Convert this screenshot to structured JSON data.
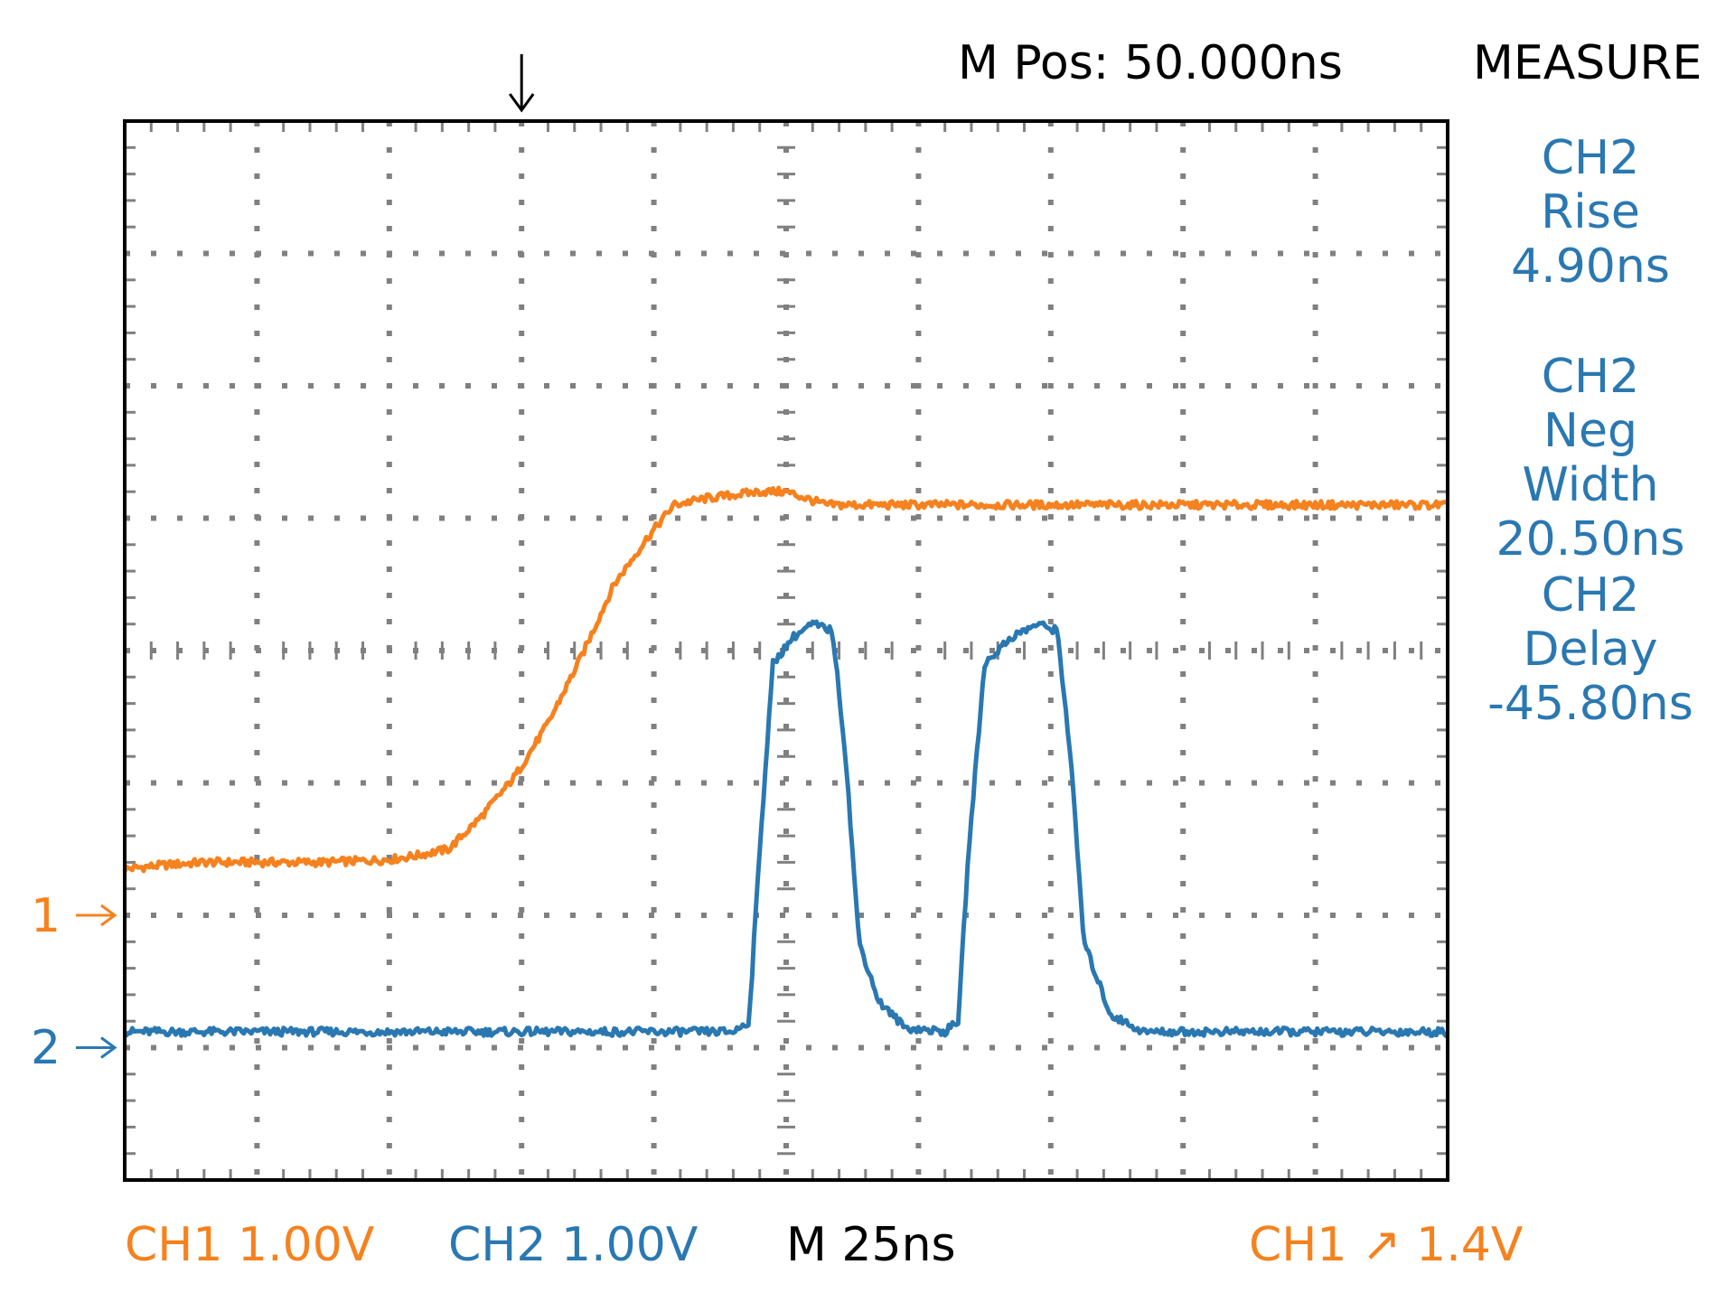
{
  "header": {
    "position": "M Pos: 50.000ns",
    "menu": "MEASURE"
  },
  "footer": {
    "ch1_scale": "CH1 1.00V",
    "ch2_scale": "CH2 1.00V",
    "timebase": "M 25ns",
    "trigger": "CH1 ↗ 1.4V"
  },
  "markers": {
    "ch1": "1",
    "ch2": "2"
  },
  "measurements": [
    {
      "channel": "CH2",
      "name": "Rise",
      "value": "4.90ns"
    },
    {
      "channel": "CH2",
      "name": "Neg Width",
      "value": "20.50ns"
    },
    {
      "channel": "CH2",
      "name": "Delay",
      "value": "-45.80ns"
    }
  ],
  "colors": {
    "ch1": "#f5821f",
    "ch2": "#2a78b1",
    "text": "#000000",
    "grid": "#808080"
  },
  "chart_data": {
    "type": "line",
    "x_divisions": 10,
    "y_divisions": 8,
    "x_unit": "div",
    "y_unit": "div",
    "grid": "dotted",
    "trigger_position_div": 3.0,
    "series": [
      {
        "name": "CH1",
        "color": "#f5821f",
        "ground_div": 2.0,
        "points": [
          [
            0,
            2.35
          ],
          [
            0.3,
            2.38
          ],
          [
            0.6,
            2.4
          ],
          [
            1.0,
            2.4
          ],
          [
            1.5,
            2.4
          ],
          [
            2.0,
            2.42
          ],
          [
            2.2,
            2.45
          ],
          [
            2.45,
            2.5
          ],
          [
            2.7,
            2.75
          ],
          [
            2.95,
            3.05
          ],
          [
            3.2,
            3.45
          ],
          [
            3.45,
            3.95
          ],
          [
            3.7,
            4.5
          ],
          [
            3.95,
            4.85
          ],
          [
            4.15,
            5.1
          ],
          [
            4.4,
            5.15
          ],
          [
            4.8,
            5.2
          ],
          [
            5.0,
            5.2
          ],
          [
            5.3,
            5.1
          ],
          [
            6.0,
            5.1
          ],
          [
            7.0,
            5.1
          ],
          [
            8.0,
            5.1
          ],
          [
            9.0,
            5.1
          ],
          [
            10,
            5.1
          ]
        ]
      },
      {
        "name": "CH2",
        "color": "#2a78b1",
        "ground_div": 1.0,
        "points": [
          [
            0,
            1.12
          ],
          [
            1.0,
            1.12
          ],
          [
            2.0,
            1.12
          ],
          [
            3.0,
            1.12
          ],
          [
            4.0,
            1.12
          ],
          [
            4.6,
            1.12
          ],
          [
            4.72,
            1.2
          ],
          [
            4.8,
            2.5
          ],
          [
            4.9,
            3.9
          ],
          [
            5.05,
            4.1
          ],
          [
            5.2,
            4.2
          ],
          [
            5.35,
            4.15
          ],
          [
            5.45,
            3.2
          ],
          [
            5.55,
            1.8
          ],
          [
            5.7,
            1.35
          ],
          [
            5.9,
            1.15
          ],
          [
            6.2,
            1.12
          ],
          [
            6.3,
            1.2
          ],
          [
            6.38,
            2.5
          ],
          [
            6.5,
            3.9
          ],
          [
            6.7,
            4.1
          ],
          [
            6.9,
            4.2
          ],
          [
            7.05,
            4.15
          ],
          [
            7.15,
            3.2
          ],
          [
            7.25,
            1.8
          ],
          [
            7.45,
            1.25
          ],
          [
            7.7,
            1.12
          ],
          [
            8.5,
            1.12
          ],
          [
            9.5,
            1.12
          ],
          [
            10,
            1.12
          ]
        ]
      }
    ]
  }
}
